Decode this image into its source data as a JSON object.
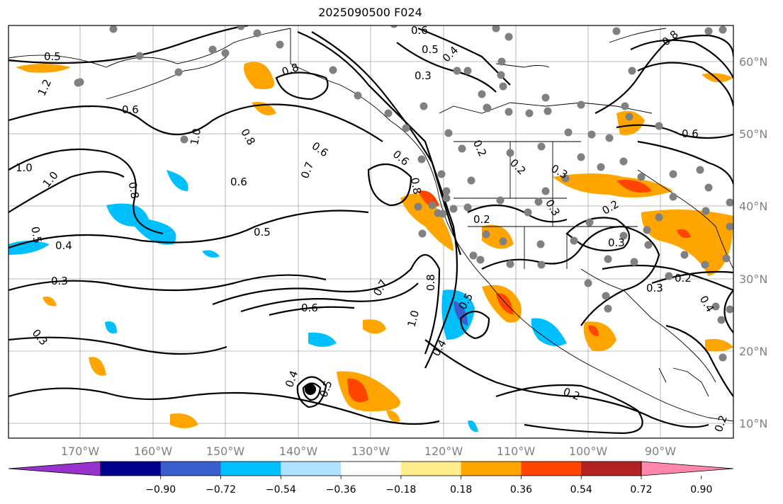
{
  "title": "2025090500 F024",
  "map": {
    "lon_labels": [
      "170°W",
      "160°W",
      "150°W",
      "140°W",
      "130°W",
      "120°W",
      "110°W",
      "100°W",
      "90°W"
    ],
    "lat_labels": [
      "60°N",
      "50°N",
      "40°N",
      "30°N",
      "20°N",
      "10°N"
    ],
    "contour_labels": [
      "0.2",
      "0.3",
      "0.4",
      "0.5",
      "0.6",
      "0.7",
      "0.8",
      "1.0",
      "1.2"
    ],
    "contour_line_color": "#000000",
    "grid_color": "#808080",
    "station_marker_color": "#808080",
    "storm_marker_color": "#000000"
  },
  "colorbar": {
    "ticks": [
      "−0.90",
      "−0.72",
      "−0.54",
      "−0.36",
      "−0.18",
      "0.18",
      "0.36",
      "0.54",
      "0.72",
      "0.90"
    ],
    "colors": [
      "#9932cc",
      "#00008b",
      "#3a5fcd",
      "#00bfff",
      "#b0e2ff",
      "#ffffff",
      "#ffec8b",
      "#ffa500",
      "#ff4500",
      "#b22222",
      "#ff88aa"
    ]
  }
}
